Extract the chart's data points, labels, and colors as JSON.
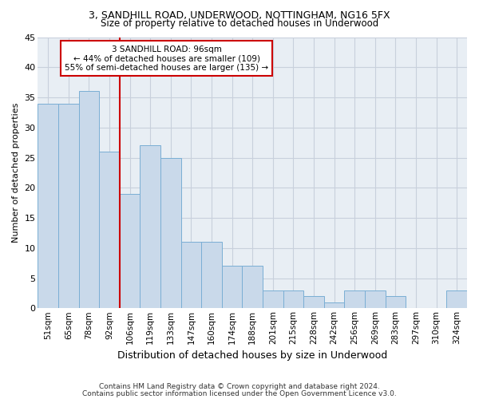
{
  "title1": "3, SANDHILL ROAD, UNDERWOOD, NOTTINGHAM, NG16 5FX",
  "title2": "Size of property relative to detached houses in Underwood",
  "xlabel": "Distribution of detached houses by size in Underwood",
  "ylabel": "Number of detached properties",
  "categories": [
    "51sqm",
    "65sqm",
    "78sqm",
    "92sqm",
    "106sqm",
    "119sqm",
    "133sqm",
    "147sqm",
    "160sqm",
    "174sqm",
    "188sqm",
    "201sqm",
    "215sqm",
    "228sqm",
    "242sqm",
    "256sqm",
    "269sqm",
    "283sqm",
    "297sqm",
    "310sqm",
    "324sqm"
  ],
  "values": [
    34,
    34,
    36,
    26,
    19,
    27,
    25,
    11,
    11,
    7,
    7,
    3,
    3,
    2,
    1,
    3,
    3,
    2,
    0,
    0,
    3
  ],
  "bar_color": "#c9d9ea",
  "bar_edge_color": "#7aaed4",
  "vline_after_index": 3,
  "vline_color": "#cc0000",
  "annotation_title": "3 SANDHILL ROAD: 96sqm",
  "annotation_line1": "← 44% of detached houses are smaller (109)",
  "annotation_line2": "55% of semi-detached houses are larger (135) →",
  "annotation_box_facecolor": "#ffffff",
  "annotation_box_edgecolor": "#cc0000",
  "ylim": [
    0,
    45
  ],
  "yticks": [
    0,
    5,
    10,
    15,
    20,
    25,
    30,
    35,
    40,
    45
  ],
  "grid_color": "#c8d0dc",
  "bg_color": "#e8eef4",
  "footer1": "Contains HM Land Registry data © Crown copyright and database right 2024.",
  "footer2": "Contains public sector information licensed under the Open Government Licence v3.0.",
  "title1_fontsize": 9,
  "title2_fontsize": 8.5,
  "ylabel_fontsize": 8,
  "xlabel_fontsize": 9,
  "tick_fontsize": 7.5,
  "ytick_fontsize": 8,
  "ann_fontsize": 7.5,
  "footer_fontsize": 6.5
}
